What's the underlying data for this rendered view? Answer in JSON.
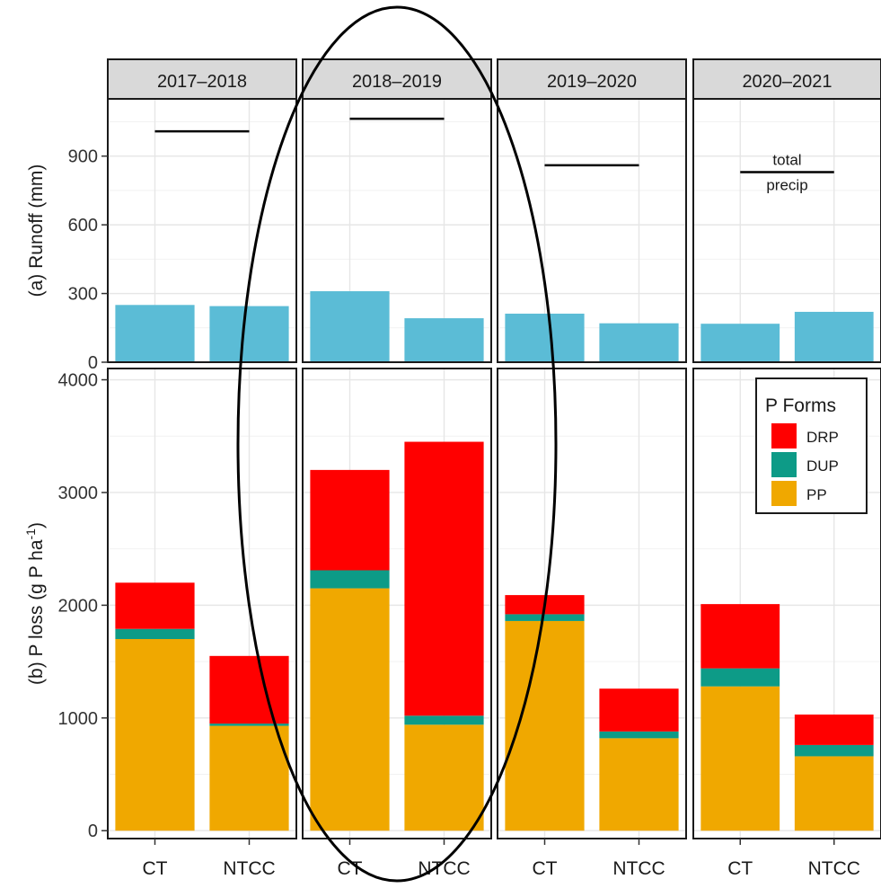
{
  "chart_data": {
    "type": "bar",
    "facets": [
      "2017–2018",
      "2018–2019",
      "2019–2020",
      "2020–2021"
    ],
    "categories": [
      "CT",
      "NTCC"
    ],
    "panels": {
      "runoff": {
        "ylabel": "(a) Runoff (mm)",
        "yticks": [
          0,
          300,
          600,
          900
        ],
        "ylim": [
          0,
          1150
        ],
        "bar_color": "#5bbcd6",
        "values": [
          [
            250,
            245
          ],
          [
            310,
            192
          ],
          [
            212,
            170
          ],
          [
            168,
            220
          ]
        ],
        "total_precip": [
          1008,
          1063,
          860,
          830
        ],
        "annotation": {
          "facet": 3,
          "top": "total",
          "bottom": "precip"
        }
      },
      "ploss": {
        "ylabel_prefix": "(b) P loss (g P ha",
        "ylabel_sup": "-1",
        "ylabel_suffix": ")",
        "yticks": [
          0,
          1000,
          2000,
          3000,
          4000
        ],
        "ylim": [
          -70,
          4100
        ],
        "stack_order": [
          "PP",
          "DUP",
          "DRP"
        ],
        "series": [
          {
            "name": "PP",
            "color": "#f0a800",
            "values": [
              [
                1700,
                930
              ],
              [
                2150,
                940
              ],
              [
                1860,
                820
              ],
              [
                1280,
                660
              ]
            ]
          },
          {
            "name": "DUP",
            "color": "#0d9b87",
            "values": [
              [
                90,
                20
              ],
              [
                160,
                80
              ],
              [
                60,
                60
              ],
              [
                160,
                100
              ]
            ]
          },
          {
            "name": "DRP",
            "color": "#ff0000",
            "values": [
              [
                410,
                600
              ],
              [
                890,
                2430
              ],
              [
                170,
                380
              ],
              [
                570,
                270
              ]
            ]
          }
        ]
      }
    },
    "legend": {
      "title": "P Forms",
      "items": [
        {
          "label": "DRP",
          "color": "#ff0000"
        },
        {
          "label": "DUP",
          "color": "#0d9b87"
        },
        {
          "label": "PP",
          "color": "#f0a800"
        }
      ],
      "position": "top-right"
    },
    "highlight": {
      "type": "ellipse",
      "target_facet": 1
    },
    "grid": true
  }
}
